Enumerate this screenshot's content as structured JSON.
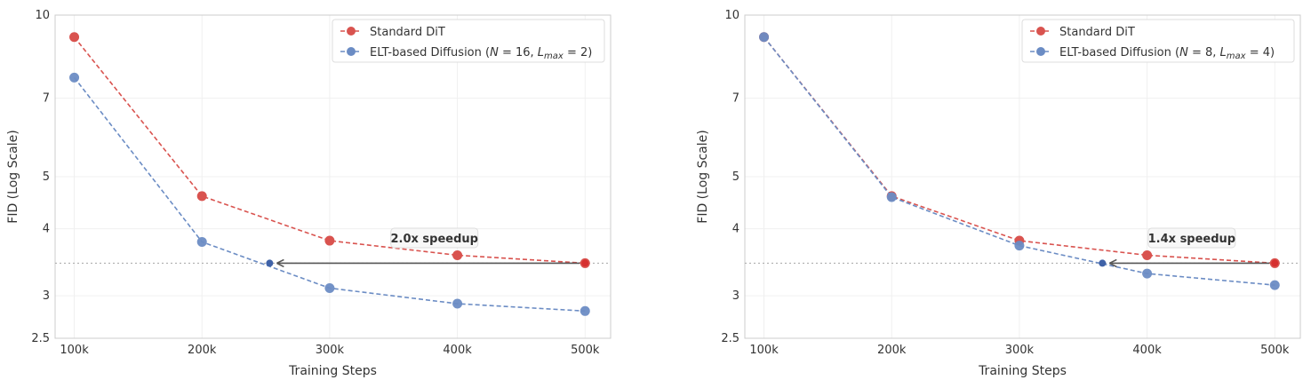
{
  "colors": {
    "standard": "#d9534f",
    "elt": "#6b8cc4",
    "reference": "#b0b0b0",
    "arrow": "#555555",
    "grid": "#f0f0f0",
    "frame": "#cccccc"
  },
  "chart_data": [
    {
      "type": "line",
      "xlabel": "Training Steps",
      "ylabel": "FID (Log Scale)",
      "x": [
        100000,
        200000,
        300000,
        400000,
        500000
      ],
      "x_tick_labels": [
        "100k",
        "200k",
        "300k",
        "400k",
        "500k"
      ],
      "xlim": [
        85000,
        520000
      ],
      "ylim": [
        2.5,
        10
      ],
      "y_scale": "log",
      "y_ticks": [
        2.5,
        3,
        4,
        5,
        7,
        10
      ],
      "y_tick_labels": [
        "2.5",
        "3",
        "4",
        "5",
        "7",
        "10"
      ],
      "grid": true,
      "legend_position": "top-right",
      "series": [
        {
          "name": "Standard DiT",
          "color_key": "standard",
          "values": [
            9.1,
            4.6,
            3.8,
            3.57,
            3.45
          ]
        },
        {
          "name_prefix": "ELT-based Diffusion (",
          "N_value": "16",
          "L_value": "2",
          "color_key": "elt",
          "values": [
            7.65,
            3.78,
            3.1,
            2.9,
            2.81
          ]
        }
      ],
      "reference_y": 3.45,
      "speedup_marker_x": 253000,
      "annotation": {
        "text": "2.0x speedup",
        "x": 382000,
        "y": 3.83
      }
    },
    {
      "type": "line",
      "xlabel": "Training Steps",
      "ylabel": "FID (Log Scale)",
      "x": [
        100000,
        200000,
        300000,
        400000,
        500000
      ],
      "x_tick_labels": [
        "100k",
        "200k",
        "300k",
        "400k",
        "500k"
      ],
      "xlim": [
        85000,
        520000
      ],
      "ylim": [
        2.5,
        10
      ],
      "y_scale": "log",
      "y_ticks": [
        2.5,
        3,
        4,
        5,
        7,
        10
      ],
      "y_tick_labels": [
        "2.5",
        "3",
        "4",
        "5",
        "7",
        "10"
      ],
      "grid": true,
      "legend_position": "top-right",
      "series": [
        {
          "name": "Standard DiT",
          "color_key": "standard",
          "values": [
            9.1,
            4.6,
            3.8,
            3.57,
            3.45
          ]
        },
        {
          "name_prefix": "ELT-based Diffusion (",
          "N_value": "8",
          "L_value": "4",
          "color_key": "elt",
          "values": [
            9.1,
            4.58,
            3.72,
            3.3,
            3.14
          ]
        }
      ],
      "reference_y": 3.45,
      "speedup_marker_x": 365000,
      "annotation": {
        "text": "1.4x speedup",
        "x": 435000,
        "y": 3.83
      }
    }
  ]
}
